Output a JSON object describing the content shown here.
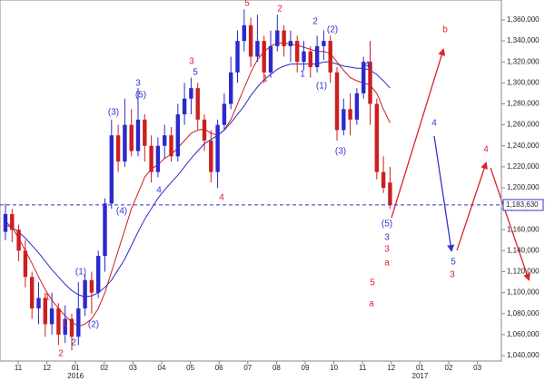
{
  "chart_data": {
    "type": "candlestick",
    "ylim": [
      1040000,
      1360000
    ],
    "yticks": [
      {
        "value": 1040000,
        "label": "1,040,000"
      },
      {
        "value": 1060000,
        "label": "1,060,000"
      },
      {
        "value": 1080000,
        "label": "1,080,000"
      },
      {
        "value": 1100000,
        "label": "1,100,000"
      },
      {
        "value": 1120000,
        "label": "1,120,000"
      },
      {
        "value": 1140000,
        "label": "1,140,000"
      },
      {
        "value": 1160000,
        "label": "1,160,000"
      },
      {
        "value": 1180000,
        "label": "1,180,000"
      },
      {
        "value": 1200000,
        "label": "1,200,000"
      },
      {
        "value": 1220000,
        "label": "1,220,000"
      },
      {
        "value": 1240000,
        "label": "1,240,000"
      },
      {
        "value": 1260000,
        "label": "1,260,000"
      },
      {
        "value": 1280000,
        "label": "1,280,000"
      },
      {
        "value": 1300000,
        "label": "1,300,000"
      },
      {
        "value": 1320000,
        "label": "1,320,000"
      },
      {
        "value": 1340000,
        "label": "1,340,000"
      },
      {
        "value": 1360000,
        "label": "1,360,000"
      }
    ],
    "xticks": [
      "11",
      "12",
      "01",
      "02",
      "03",
      "04",
      "05",
      "06",
      "07",
      "08",
      "09",
      "10",
      "11",
      "12",
      "01",
      "02",
      "03"
    ],
    "year_labels": [
      "2016",
      "2017"
    ],
    "up_color": "#2a2acc",
    "down_color": "#cc1f1f",
    "open": [
      1158000,
      1175000,
      1160000,
      1140000,
      1115000,
      1085000,
      1095000,
      1070000,
      1085000,
      1060000,
      1075000,
      1058000,
      1085000,
      1112000,
      1100000,
      1135000,
      1185000,
      1250000,
      1225000,
      1260000,
      1235000,
      1265000,
      1240000,
      1215000,
      1240000,
      1250000,
      1230000,
      1270000,
      1285000,
      1295000,
      1265000,
      1245000,
      1215000,
      1260000,
      1280000,
      1310000,
      1340000,
      1355000,
      1325000,
      1340000,
      1310000,
      1335000,
      1350000,
      1335000,
      1340000,
      1320000,
      1330000,
      1315000,
      1335000,
      1340000,
      1310000,
      1255000,
      1275000,
      1265000,
      1290000,
      1320000,
      1280000,
      1215000,
      1205000
    ],
    "high": [
      1185000,
      1180000,
      1165000,
      1150000,
      1120000,
      1110000,
      1100000,
      1100000,
      1090000,
      1088000,
      1080000,
      1110000,
      1118000,
      1120000,
      1140000,
      1190000,
      1265000,
      1260000,
      1285000,
      1275000,
      1295000,
      1270000,
      1250000,
      1248000,
      1260000,
      1258000,
      1280000,
      1300000,
      1305000,
      1300000,
      1270000,
      1255000,
      1265000,
      1290000,
      1325000,
      1350000,
      1370000,
      1362000,
      1365000,
      1345000,
      1350000,
      1365000,
      1355000,
      1350000,
      1345000,
      1340000,
      1335000,
      1345000,
      1350000,
      1345000,
      1315000,
      1285000,
      1290000,
      1295000,
      1325000,
      1340000,
      1285000,
      1230000,
      1220000
    ],
    "low": [
      1150000,
      1148000,
      1130000,
      1105000,
      1075000,
      1070000,
      1058000,
      1060000,
      1050000,
      1052000,
      1045000,
      1050000,
      1078000,
      1080000,
      1095000,
      1120000,
      1180000,
      1215000,
      1220000,
      1230000,
      1230000,
      1225000,
      1205000,
      1210000,
      1228000,
      1225000,
      1225000,
      1260000,
      1270000,
      1255000,
      1235000,
      1205000,
      1200000,
      1255000,
      1275000,
      1300000,
      1330000,
      1315000,
      1320000,
      1300000,
      1305000,
      1330000,
      1325000,
      1320000,
      1310000,
      1312000,
      1305000,
      1310000,
      1322000,
      1300000,
      1245000,
      1250000,
      1250000,
      1260000,
      1285000,
      1260000,
      1208000,
      1195000,
      1180000
    ],
    "close": [
      1175000,
      1160000,
      1140000,
      1115000,
      1085000,
      1095000,
      1070000,
      1085000,
      1060000,
      1075000,
      1058000,
      1085000,
      1112000,
      1100000,
      1135000,
      1185000,
      1250000,
      1225000,
      1260000,
      1235000,
      1265000,
      1240000,
      1215000,
      1240000,
      1250000,
      1230000,
      1270000,
      1285000,
      1295000,
      1265000,
      1245000,
      1215000,
      1260000,
      1280000,
      1310000,
      1340000,
      1355000,
      1325000,
      1340000,
      1310000,
      1335000,
      1350000,
      1335000,
      1340000,
      1320000,
      1330000,
      1315000,
      1335000,
      1340000,
      1310000,
      1255000,
      1275000,
      1265000,
      1290000,
      1320000,
      1280000,
      1215000,
      1200000,
      1183630
    ],
    "moving_averages": [
      {
        "color": "#cc1f1f",
        "values": [
          1168000,
          1162000,
          1152000,
          1140000,
          1128000,
          1115000,
          1103000,
          1093000,
          1085000,
          1078000,
          1072000,
          1068000,
          1070000,
          1075000,
          1085000,
          1100000,
          1120000,
          1140000,
          1160000,
          1180000,
          1195000,
          1210000,
          1218000,
          1222000,
          1228000,
          1232000,
          1238000,
          1245000,
          1252000,
          1255000,
          1256000,
          1252000,
          1250000,
          1255000,
          1265000,
          1280000,
          1295000,
          1310000,
          1322000,
          1330000,
          1335000,
          1338000,
          1338000,
          1337000,
          1336000,
          1334000,
          1332000,
          1330000,
          1330000,
          1328000,
          1320000,
          1312000,
          1305000,
          1302000,
          1300000,
          1298000,
          1290000,
          1275000,
          1262000
        ]
      },
      {
        "color": "#2a2acc",
        "values": [
          1165000,
          1162000,
          1158000,
          1152000,
          1145000,
          1138000,
          1130000,
          1122000,
          1115000,
          1108000,
          1102000,
          1098000,
          1096000,
          1097000,
          1100000,
          1105000,
          1112000,
          1122000,
          1132000,
          1145000,
          1158000,
          1170000,
          1180000,
          1190000,
          1198000,
          1205000,
          1212000,
          1220000,
          1228000,
          1235000,
          1242000,
          1246000,
          1250000,
          1255000,
          1262000,
          1270000,
          1278000,
          1288000,
          1296000,
          1303000,
          1308000,
          1313000,
          1316000,
          1318000,
          1318000,
          1318000,
          1318000,
          1318000,
          1320000,
          1320000,
          1318000,
          1316000,
          1315000,
          1314000,
          1314000,
          1312000,
          1308000,
          1302000,
          1295000
        ]
      }
    ],
    "last_price": {
      "value": 1183630,
      "label": "1,183,630"
    },
    "annotations": [
      {
        "text": "5",
        "color": "#e0202a"
      },
      {
        "text": "2",
        "color": "#e0202a"
      },
      {
        "text": "3",
        "color": "#e0202a"
      },
      {
        "text": "1",
        "color": "#e0202a"
      },
      {
        "text": "1",
        "color": "#e0202a"
      },
      {
        "text": "1",
        "color": "#e0202a"
      },
      {
        "text": "2",
        "color": "#e0202a"
      },
      {
        "text": "4",
        "color": "#e0202a"
      },
      {
        "text": "b",
        "color": "#e0202a"
      },
      {
        "text": "4",
        "color": "#e0202a"
      },
      {
        "text": "3",
        "color": "#e0202a"
      },
      {
        "text": "a",
        "color": "#e0202a"
      },
      {
        "text": "3",
        "color": "#e0202a"
      },
      {
        "text": "5",
        "color": "#e0202a"
      },
      {
        "text": "a",
        "color": "#e0202a"
      },
      {
        "text": "3",
        "color": "#3333cc"
      },
      {
        "text": "(5)",
        "color": "#3333cc"
      },
      {
        "text": "5",
        "color": "#3333cc"
      },
      {
        "text": "(3)",
        "color": "#3333cc"
      },
      {
        "text": "4",
        "color": "#3333cc"
      },
      {
        "text": "(4)",
        "color": "#3333cc"
      },
      {
        "text": "(1)",
        "color": "#3333cc"
      },
      {
        "text": "(2)",
        "color": "#3333cc"
      },
      {
        "text": "2",
        "color": "#3333cc"
      },
      {
        "text": "1",
        "color": "#3333cc"
      },
      {
        "text": "2",
        "color": "#3333cc"
      },
      {
        "text": "(1)",
        "color": "#3333cc"
      },
      {
        "text": "(2)",
        "color": "#3333cc"
      },
      {
        "text": "(3)",
        "color": "#3333cc"
      },
      {
        "text": "(4)",
        "color": "#3333cc"
      },
      {
        "text": "(5)",
        "color": "#3333cc"
      },
      {
        "text": "3",
        "color": "#3333cc"
      },
      {
        "text": "4",
        "color": "#3333cc"
      },
      {
        "text": "5",
        "color": "#3333cc"
      }
    ]
  }
}
